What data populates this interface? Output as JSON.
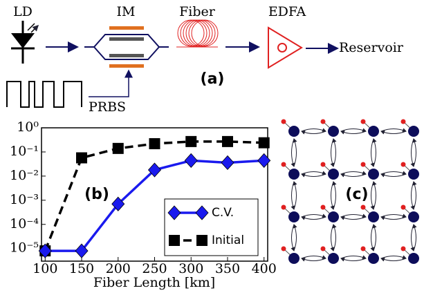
{
  "diagram": {
    "components": [
      {
        "label": "LD"
      },
      {
        "label": "IM"
      },
      {
        "label": "Fiber"
      },
      {
        "label": "EDFA"
      },
      {
        "label": "Reservoir"
      }
    ],
    "modulation_label": "PRBS",
    "panel_label": "(a)"
  },
  "chart_data": {
    "type": "line",
    "annotation": "(b)",
    "xlabel": "Fiber Length [km]",
    "x": [
      100,
      150,
      200,
      250,
      300,
      350,
      400
    ],
    "series": [
      {
        "name": "C.V.",
        "color": "#1a1aee",
        "marker": "diamond",
        "dashed": false,
        "values": [
          8e-06,
          8e-06,
          0.0007,
          0.018,
          0.044,
          0.036,
          0.044
        ]
      },
      {
        "name": "Initial",
        "color": "#000000",
        "marker": "square",
        "dashed": true,
        "values": [
          8e-06,
          0.057,
          0.14,
          0.22,
          0.27,
          0.27,
          0.24
        ]
      }
    ],
    "xlim": [
      95,
      405
    ],
    "ylim": [
      3e-06,
      1
    ],
    "log_y": true,
    "xticks": [
      100,
      150,
      200,
      250,
      300,
      350,
      400
    ],
    "yticks": [
      {
        "value": 1,
        "label": "10⁰"
      },
      {
        "value": 0.1,
        "label": "10⁻¹"
      },
      {
        "value": 0.01,
        "label": "10⁻²"
      },
      {
        "value": 0.001,
        "label": "10⁻³"
      },
      {
        "value": 0.0001,
        "label": "10⁻⁴"
      },
      {
        "value": 1e-05,
        "label": "10⁻⁵"
      }
    ],
    "legend": "lower right"
  },
  "reservoir": {
    "panel_label": "(c)"
  }
}
